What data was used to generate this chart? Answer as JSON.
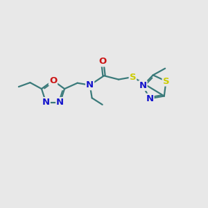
{
  "bg_color": "#e8e8e8",
  "bond_color": "#3a7a7a",
  "bond_width": 1.6,
  "atom_colors": {
    "N": "#1515cc",
    "O": "#cc1515",
    "S": "#cccc00",
    "C": "#3a7a7a"
  },
  "font_size": 9.5,
  "fig_size": [
    3.0,
    3.0
  ],
  "dpi": 100,
  "xlim": [
    0,
    10
  ],
  "ylim": [
    0,
    10
  ]
}
